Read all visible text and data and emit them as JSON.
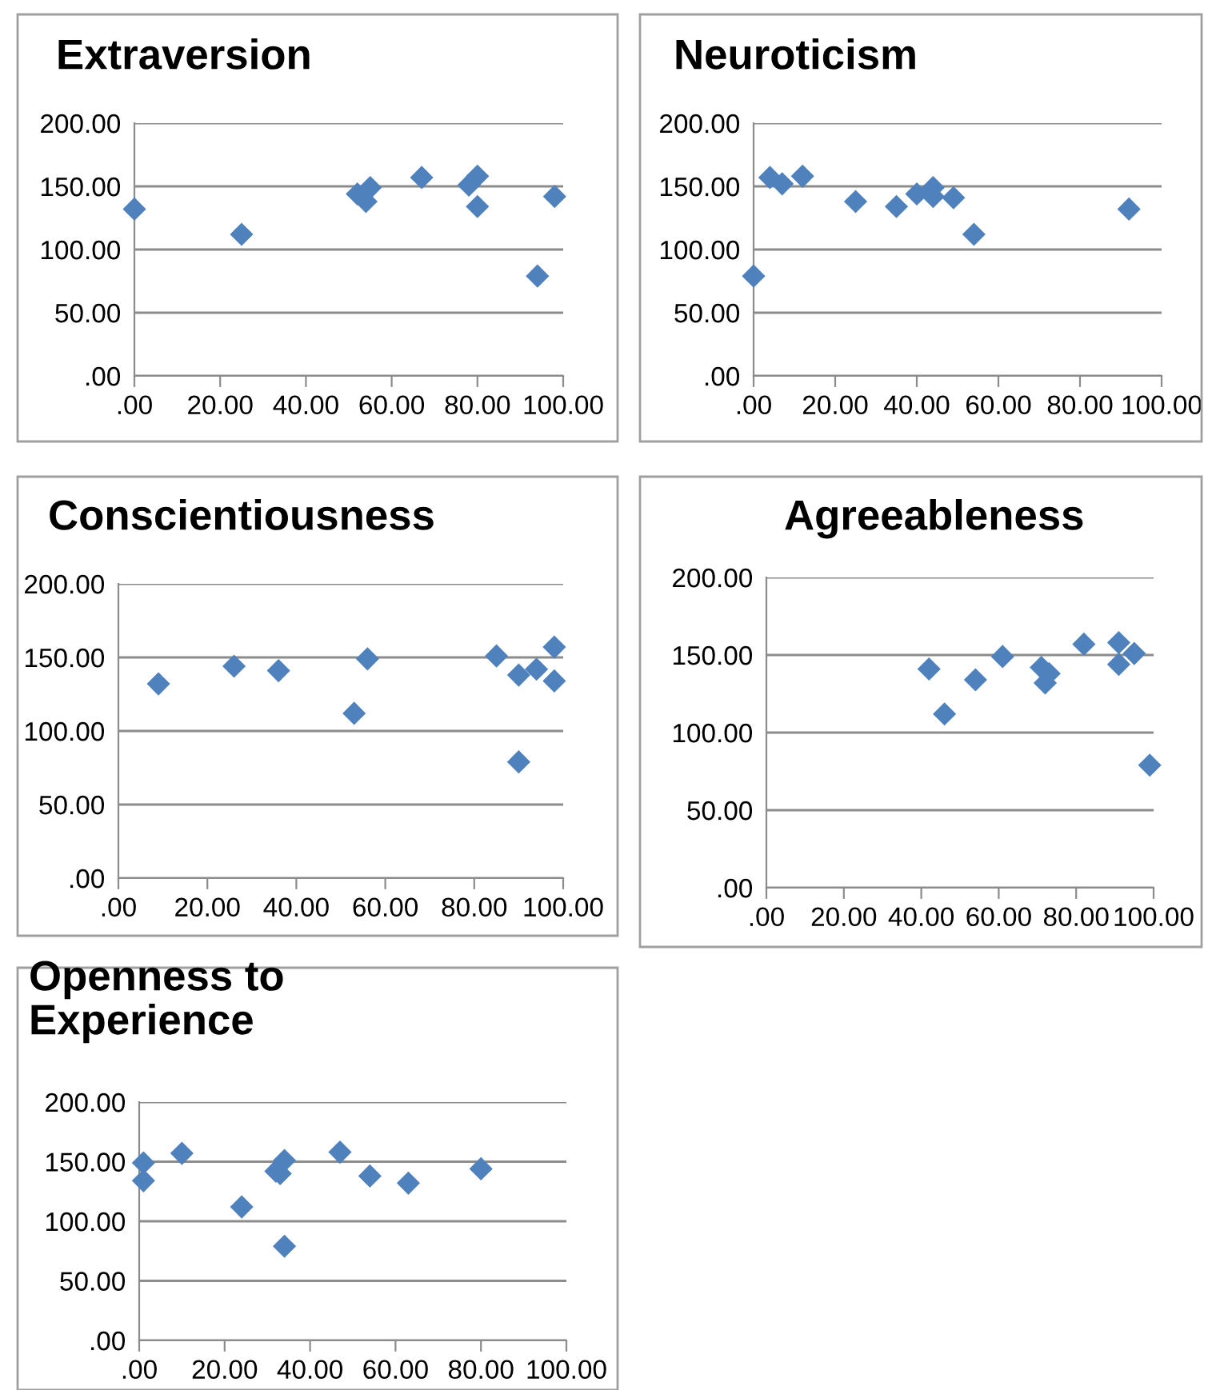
{
  "chart_data": [
    {
      "type": "scatter",
      "title": "Extraversion",
      "x": [
        0,
        25,
        52,
        54,
        55,
        67,
        78,
        80,
        80,
        94,
        98
      ],
      "values": [
        132,
        112,
        144,
        138,
        149,
        157,
        151,
        158,
        134,
        79,
        142
      ],
      "color": "#4f81bd",
      "marker": "diamond",
      "grid": "y",
      "xlim": [
        0,
        100
      ],
      "ylim": [
        0,
        200
      ],
      "xticks": [
        {
          "value": 0,
          "label": ".00"
        },
        {
          "value": 20,
          "label": "20.00"
        },
        {
          "value": 40,
          "label": "40.00"
        },
        {
          "value": 60,
          "label": "60.00"
        },
        {
          "value": 80,
          "label": "80.00"
        },
        {
          "value": 100,
          "label": "100.00"
        }
      ],
      "yticks": [
        {
          "value": 0,
          "label": ".00"
        },
        {
          "value": 50,
          "label": "50.00"
        },
        {
          "value": 100,
          "label": "100.00"
        },
        {
          "value": 150,
          "label": "150.00"
        },
        {
          "value": 200,
          "label": "200.00"
        }
      ]
    },
    {
      "type": "scatter",
      "title": "Neuroticism",
      "x": [
        0,
        4,
        7,
        12,
        25,
        35,
        40,
        44,
        44,
        49,
        54,
        92
      ],
      "values": [
        79,
        157,
        152,
        158,
        138,
        134,
        144,
        149,
        142,
        141,
        112,
        132
      ],
      "color": "#4f81bd",
      "marker": "diamond",
      "grid": "y",
      "xlim": [
        0,
        100
      ],
      "ylim": [
        0,
        200
      ],
      "xticks": [
        {
          "value": 0,
          "label": ".00"
        },
        {
          "value": 20,
          "label": "20.00"
        },
        {
          "value": 40,
          "label": "40.00"
        },
        {
          "value": 60,
          "label": "60.00"
        },
        {
          "value": 80,
          "label": "80.00"
        },
        {
          "value": 100,
          "label": "100.00"
        }
      ],
      "yticks": [
        {
          "value": 0,
          "label": ".00"
        },
        {
          "value": 50,
          "label": "50.00"
        },
        {
          "value": 100,
          "label": "100.00"
        },
        {
          "value": 150,
          "label": "150.00"
        },
        {
          "value": 200,
          "label": "200.00"
        }
      ]
    },
    {
      "type": "scatter",
      "title": "Conscientiousness",
      "x": [
        9,
        26,
        36,
        53,
        56,
        85,
        90,
        90,
        94,
        98,
        98
      ],
      "values": [
        132,
        144,
        141,
        112,
        149,
        151,
        138,
        79,
        142,
        157,
        134
      ],
      "color": "#4f81bd",
      "marker": "diamond",
      "grid": "y",
      "xlim": [
        0,
        100
      ],
      "ylim": [
        0,
        200
      ],
      "xticks": [
        {
          "value": 0,
          "label": ".00"
        },
        {
          "value": 20,
          "label": "20.00"
        },
        {
          "value": 40,
          "label": "40.00"
        },
        {
          "value": 60,
          "label": "60.00"
        },
        {
          "value": 80,
          "label": "80.00"
        },
        {
          "value": 100,
          "label": "100.00"
        }
      ],
      "yticks": [
        {
          "value": 0,
          "label": ".00"
        },
        {
          "value": 50,
          "label": "50.00"
        },
        {
          "value": 100,
          "label": "100.00"
        },
        {
          "value": 150,
          "label": "150.00"
        },
        {
          "value": 200,
          "label": "200.00"
        }
      ]
    },
    {
      "type": "scatter",
      "title": "Agreeableness",
      "x": [
        42,
        46,
        54,
        61,
        71,
        72,
        73,
        82,
        91,
        91,
        95,
        99
      ],
      "values": [
        141,
        112,
        134,
        149,
        142,
        132,
        138,
        157,
        158,
        144,
        151,
        79
      ],
      "color": "#4f81bd",
      "marker": "diamond",
      "grid": "y",
      "xlim": [
        0,
        100
      ],
      "ylim": [
        0,
        200
      ],
      "xticks": [
        {
          "value": 0,
          "label": ".00"
        },
        {
          "value": 20,
          "label": "20.00"
        },
        {
          "value": 40,
          "label": "40.00"
        },
        {
          "value": 60,
          "label": "60.00"
        },
        {
          "value": 80,
          "label": "80.00"
        },
        {
          "value": 100,
          "label": "100.00"
        }
      ],
      "yticks": [
        {
          "value": 0,
          "label": ".00"
        },
        {
          "value": 50,
          "label": "50.00"
        },
        {
          "value": 100,
          "label": "100.00"
        },
        {
          "value": 150,
          "label": "150.00"
        },
        {
          "value": 200,
          "label": "200.00"
        }
      ]
    },
    {
      "type": "scatter",
      "title": "Openness to\nExperience",
      "x": [
        1,
        1,
        10,
        24,
        32,
        33,
        34,
        34,
        47,
        54,
        63,
        80
      ],
      "values": [
        149,
        134,
        157,
        112,
        142,
        140,
        151,
        79,
        158,
        138,
        132,
        144
      ],
      "color": "#4f81bd",
      "marker": "diamond",
      "grid": "y",
      "xlim": [
        0,
        100
      ],
      "ylim": [
        0,
        200
      ],
      "xticks": [
        {
          "value": 0,
          "label": ".00"
        },
        {
          "value": 20,
          "label": "20.00"
        },
        {
          "value": 40,
          "label": "40.00"
        },
        {
          "value": 60,
          "label": "60.00"
        },
        {
          "value": 80,
          "label": "80.00"
        },
        {
          "value": 100,
          "label": "100.00"
        }
      ],
      "yticks": [
        {
          "value": 0,
          "label": ".00"
        },
        {
          "value": 50,
          "label": "50.00"
        },
        {
          "value": 100,
          "label": "100.00"
        },
        {
          "value": 150,
          "label": "150.00"
        },
        {
          "value": 200,
          "label": "200.00"
        }
      ]
    }
  ]
}
